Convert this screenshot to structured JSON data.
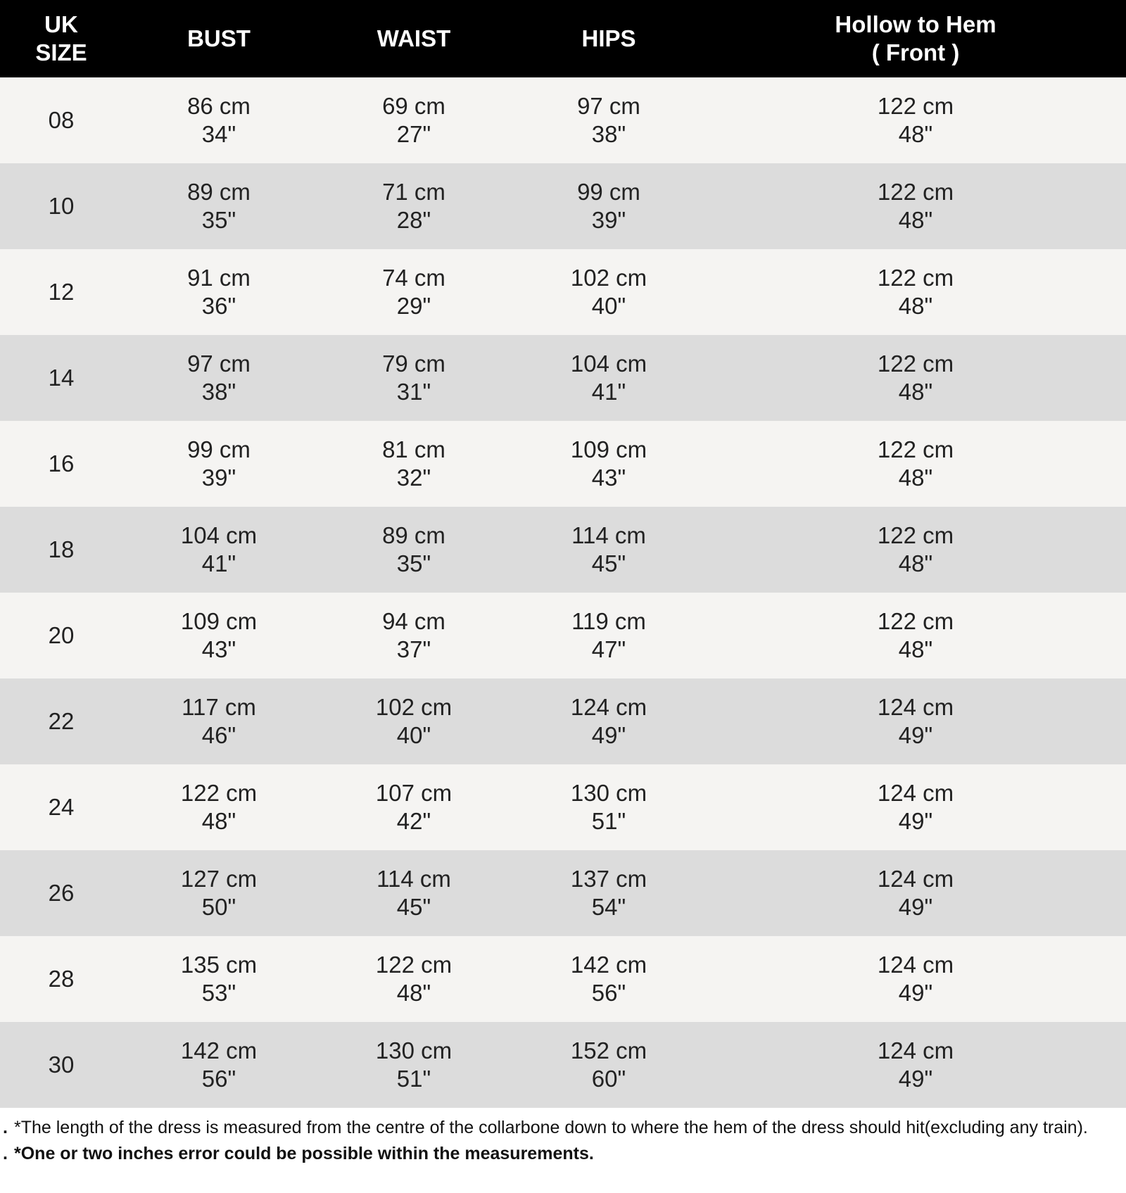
{
  "headers": [
    {
      "line1": "UK",
      "line2": "SIZE"
    },
    {
      "line1": "BUST",
      "line2": ""
    },
    {
      "line1": "WAIST",
      "line2": ""
    },
    {
      "line1": "HIPS",
      "line2": ""
    },
    {
      "line1": "Hollow to Hem",
      "line2": "( Front )"
    }
  ],
  "rows": [
    {
      "size": "08",
      "bust": [
        "86 cm",
        "34\""
      ],
      "waist": [
        "69 cm",
        "27\""
      ],
      "hips": [
        "97 cm",
        "38\""
      ],
      "hem": [
        "122 cm",
        "48\""
      ]
    },
    {
      "size": "10",
      "bust": [
        "89 cm",
        "35\""
      ],
      "waist": [
        "71 cm",
        "28\""
      ],
      "hips": [
        "99 cm",
        "39\""
      ],
      "hem": [
        "122 cm",
        "48\""
      ]
    },
    {
      "size": "12",
      "bust": [
        "91 cm",
        "36\""
      ],
      "waist": [
        "74 cm",
        "29\""
      ],
      "hips": [
        "102 cm",
        "40\""
      ],
      "hem": [
        "122 cm",
        "48\""
      ]
    },
    {
      "size": "14",
      "bust": [
        "97 cm",
        "38\""
      ],
      "waist": [
        "79 cm",
        "31\""
      ],
      "hips": [
        "104 cm",
        "41\""
      ],
      "hem": [
        "122 cm",
        "48\""
      ]
    },
    {
      "size": "16",
      "bust": [
        "99 cm",
        "39\""
      ],
      "waist": [
        "81 cm",
        "32\""
      ],
      "hips": [
        "109 cm",
        "43\""
      ],
      "hem": [
        "122 cm",
        "48\""
      ]
    },
    {
      "size": "18",
      "bust": [
        "104 cm",
        "41\""
      ],
      "waist": [
        "89 cm",
        "35\""
      ],
      "hips": [
        "114 cm",
        "45\""
      ],
      "hem": [
        "122 cm",
        "48\""
      ]
    },
    {
      "size": "20",
      "bust": [
        "109 cm",
        "43\""
      ],
      "waist": [
        "94 cm",
        "37\""
      ],
      "hips": [
        "119 cm",
        "47\""
      ],
      "hem": [
        "122 cm",
        "48\""
      ]
    },
    {
      "size": "22",
      "bust": [
        "117 cm",
        "46\""
      ],
      "waist": [
        "102 cm",
        "40\""
      ],
      "hips": [
        "124 cm",
        "49\""
      ],
      "hem": [
        "124 cm",
        "49\""
      ]
    },
    {
      "size": "24",
      "bust": [
        "122 cm",
        "48\""
      ],
      "waist": [
        "107 cm",
        "42\""
      ],
      "hips": [
        "130 cm",
        "51\""
      ],
      "hem": [
        "124 cm",
        "49\""
      ]
    },
    {
      "size": "26",
      "bust": [
        "127 cm",
        "50\""
      ],
      "waist": [
        "114 cm",
        "45\""
      ],
      "hips": [
        "137 cm",
        "54\""
      ],
      "hem": [
        "124 cm",
        "49\""
      ]
    },
    {
      "size": "28",
      "bust": [
        "135 cm",
        "53\""
      ],
      "waist": [
        "122 cm",
        "48\""
      ],
      "hips": [
        "142 cm",
        "56\""
      ],
      "hem": [
        "124 cm",
        "49\""
      ]
    },
    {
      "size": "30",
      "bust": [
        "142 cm",
        "56\""
      ],
      "waist": [
        "130 cm",
        "51\""
      ],
      "hips": [
        "152 cm",
        "60\""
      ],
      "hem": [
        "124 cm",
        "49\""
      ]
    }
  ],
  "notes": [
    {
      "bullet": ".",
      "text": "*The length of the dress is measured from the centre of the collarbone down to where the hem of the dress should hit(excluding any train).",
      "bold": false
    },
    {
      "bullet": ".",
      "text": "*One or two inches error could be possible within the measurements.",
      "bold": true
    }
  ],
  "colors": {
    "header_bg": "#000000",
    "row_light": "#f5f4f2",
    "row_dark": "#dcdcdc"
  }
}
